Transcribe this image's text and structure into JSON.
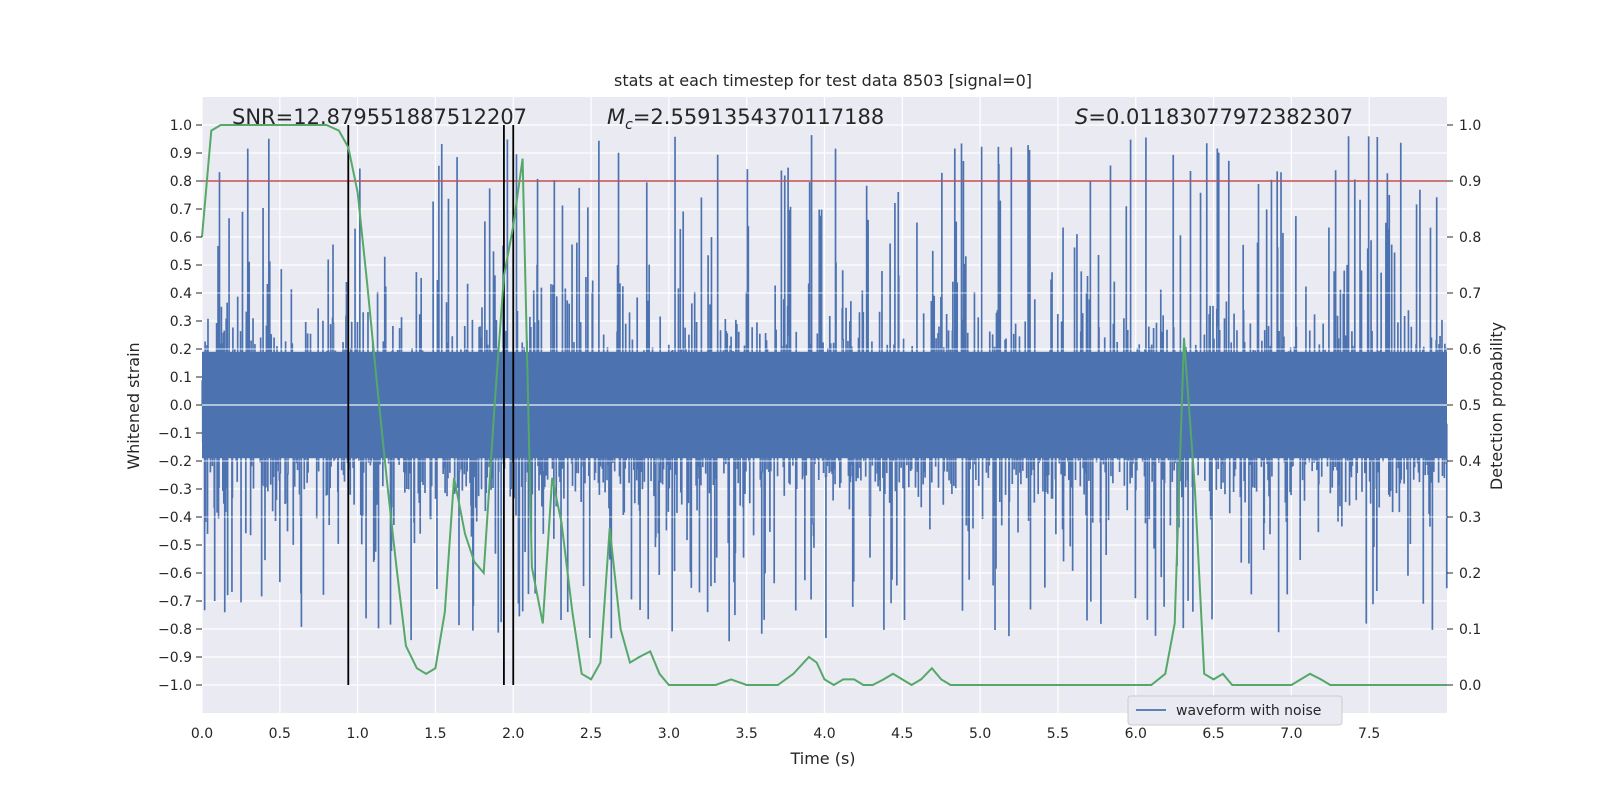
{
  "chart_data": {
    "type": "line",
    "title": "stats at each timestep for test data 8503 [signal=0]",
    "xlabel": "Time (s)",
    "ylabel": "Whitened strain",
    "ylabel_right": "Detection probability",
    "xlim": [
      0.0,
      8.0
    ],
    "ylim": [
      -1.1,
      1.1
    ],
    "ylim_right": [
      -0.05,
      1.05
    ],
    "x_ticks": [
      "0.0",
      "0.5",
      "1.0",
      "1.5",
      "2.0",
      "2.5",
      "3.0",
      "3.5",
      "4.0",
      "4.5",
      "5.0",
      "5.5",
      "6.0",
      "6.5",
      "7.0",
      "7.5"
    ],
    "y_ticks": [
      "1.0",
      "0.9",
      "0.8",
      "0.7",
      "0.6",
      "0.5",
      "0.4",
      "0.3",
      "0.2",
      "0.1",
      "0.0",
      "−0.1",
      "−0.2",
      "−0.3",
      "−0.4",
      "−0.5",
      "−0.6",
      "−0.7",
      "−0.8",
      "−0.9",
      "−1.0"
    ],
    "y_ticks_right": [
      "1.0",
      "0.9",
      "0.8",
      "0.7",
      "0.6",
      "0.5",
      "0.4",
      "0.3",
      "0.2",
      "0.1",
      "0.0"
    ],
    "grid": true,
    "legend": "bottom-right",
    "annotations": {
      "snr": "SNR=12.879551887512207",
      "mc_symbol": "M",
      "mc_sub": "c",
      "mc_value": "=2.5591354370117188",
      "s_symbol": "S",
      "s_value": "=0.01183077972382307"
    },
    "series": [
      {
        "name": "waveform with noise",
        "color": "#4c72b0",
        "kind": "dense_noise",
        "t_range": [
          0.0,
          8.0
        ],
        "envelope": 0.4,
        "spike_max": 0.97,
        "spike_min": -0.99
      },
      {
        "color": "#55a868",
        "axis": "right",
        "x": [
          0.0,
          0.06,
          0.12,
          0.2,
          0.3,
          0.4,
          0.5,
          0.6,
          0.7,
          0.8,
          0.88,
          0.94,
          1.0,
          1.06,
          1.12,
          1.19,
          1.25,
          1.31,
          1.38,
          1.44,
          1.5,
          1.56,
          1.62,
          1.69,
          1.75,
          1.81,
          1.88,
          1.94,
          2.0,
          2.06,
          2.12,
          2.19,
          2.25,
          2.31,
          2.38,
          2.44,
          2.5,
          2.56,
          2.62,
          2.69,
          2.75,
          2.81,
          2.88,
          2.94,
          3.0,
          3.1,
          3.2,
          3.3,
          3.4,
          3.5,
          3.6,
          3.7,
          3.8,
          3.9,
          3.95,
          4.0,
          4.06,
          4.12,
          4.19,
          4.25,
          4.31,
          4.38,
          4.44,
          4.5,
          4.56,
          4.62,
          4.69,
          4.75,
          4.81,
          4.88,
          4.94,
          5.0,
          5.1,
          5.3,
          5.5,
          5.7,
          5.9,
          6.0,
          6.1,
          6.19,
          6.25,
          6.31,
          6.38,
          6.44,
          6.5,
          6.56,
          6.62,
          6.69,
          6.75,
          6.8,
          6.9,
          7.0,
          7.06,
          7.12,
          7.19,
          7.25,
          7.31,
          7.4,
          7.6,
          7.8,
          8.0
        ],
        "values": [
          0.8,
          0.99,
          1.0,
          1.0,
          1.0,
          1.0,
          1.0,
          1.0,
          1.0,
          1.0,
          0.99,
          0.96,
          0.88,
          0.72,
          0.55,
          0.36,
          0.21,
          0.07,
          0.03,
          0.02,
          0.03,
          0.13,
          0.37,
          0.27,
          0.22,
          0.2,
          0.5,
          0.73,
          0.82,
          0.94,
          0.21,
          0.11,
          0.37,
          0.29,
          0.13,
          0.02,
          0.01,
          0.04,
          0.28,
          0.1,
          0.04,
          0.05,
          0.06,
          0.02,
          0.0,
          0.0,
          0.0,
          0.0,
          0.01,
          0.0,
          0.0,
          0.0,
          0.02,
          0.05,
          0.04,
          0.01,
          0.0,
          0.01,
          0.01,
          0.0,
          0.0,
          0.01,
          0.02,
          0.01,
          0.0,
          0.01,
          0.03,
          0.01,
          0.0,
          0.0,
          0.0,
          0.0,
          0.0,
          0.0,
          0.0,
          0.0,
          0.0,
          0.0,
          0.0,
          0.02,
          0.11,
          0.62,
          0.35,
          0.02,
          0.01,
          0.02,
          0.0,
          0.0,
          0.0,
          0.0,
          0.0,
          0.0,
          0.01,
          0.02,
          0.01,
          0.0,
          0.0,
          0.0,
          0.0,
          0.0,
          0.0
        ]
      }
    ],
    "threshold": {
      "color": "#c44e52",
      "y": 0.8
    },
    "vlines": {
      "color": "#000000",
      "x": [
        0.94,
        1.94,
        2.0
      ],
      "y_range": [
        -1.0,
        1.0
      ]
    }
  }
}
